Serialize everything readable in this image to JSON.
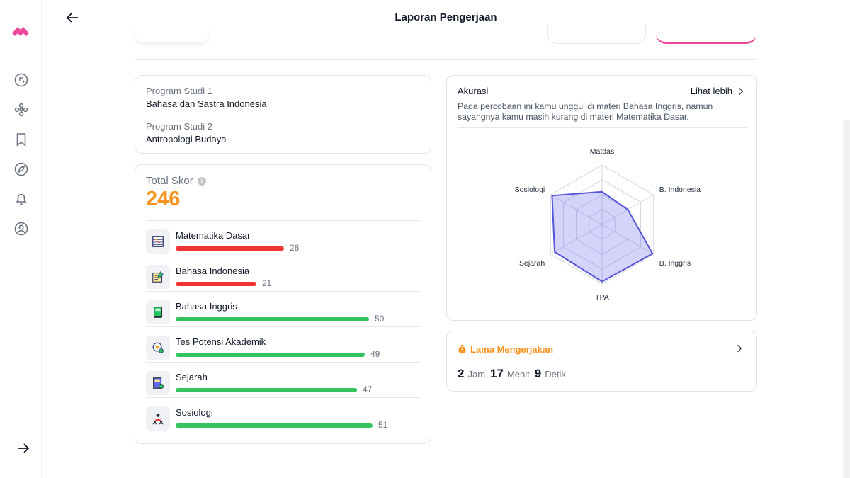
{
  "header": {
    "title": "Laporan Pengerjaan"
  },
  "colors": {
    "accent_pink": "#ec4899",
    "score_orange": "#f7931e",
    "bar_red": "#ef3535",
    "bar_green": "#35c35e",
    "radar_stroke": "#5354d6"
  },
  "sidebar": {
    "items": [
      {
        "icon": "quiz-icon"
      },
      {
        "icon": "community-icon"
      },
      {
        "icon": "bookmark-icon"
      },
      {
        "icon": "explore-icon"
      },
      {
        "icon": "bell-icon"
      },
      {
        "icon": "profile-icon"
      }
    ]
  },
  "program_studi": [
    {
      "label": "Program Studi 1",
      "value": "Bahasa dan Sastra Indonesia"
    },
    {
      "label": "Program Studi 2",
      "value": "Antropologi Budaya"
    }
  ],
  "score": {
    "label": "Total Skor",
    "value": "246",
    "subjects": [
      {
        "name": "Matematika Dasar",
        "score": "28",
        "level": 28,
        "status": "low",
        "icon": "abacus-icon"
      },
      {
        "name": "Bahasa Indonesia",
        "score": "21",
        "level": 21,
        "status": "low",
        "icon": "writing-board-icon"
      },
      {
        "name": "Bahasa Inggris",
        "score": "50",
        "level": 50,
        "status": "good",
        "icon": "green-book-icon"
      },
      {
        "name": "Tes Potensi Akademik",
        "score": "49",
        "level": 49,
        "status": "good",
        "icon": "brain-gear-icon"
      },
      {
        "name": "Sejarah",
        "score": "47",
        "level": 47,
        "status": "good",
        "icon": "history-book-icon"
      },
      {
        "name": "Sosiologi",
        "score": "51",
        "level": 51,
        "status": "good",
        "icon": "people-icon"
      }
    ]
  },
  "accuracy": {
    "title": "Akurasi",
    "more_label": "Lihat lebih",
    "description": "Pada percobaan ini kamu unggul di materi Bahasa Inggris, namun sayangnya kamu masih kurang di materi Matematika Dasar.",
    "radar": {
      "axes": [
        "Matdas",
        "B. Indonesia",
        "B. Inggris",
        "TPA",
        "Sejarah",
        "Sosiologi"
      ],
      "values": [
        0.55,
        0.5,
        0.98,
        0.96,
        0.92,
        0.97
      ]
    }
  },
  "duration": {
    "label": "Lama Mengerjakan",
    "hours": "2",
    "hours_unit": "Jam",
    "minutes": "17",
    "minutes_unit": "Menit",
    "seconds": "9",
    "seconds_unit": "Detik"
  }
}
